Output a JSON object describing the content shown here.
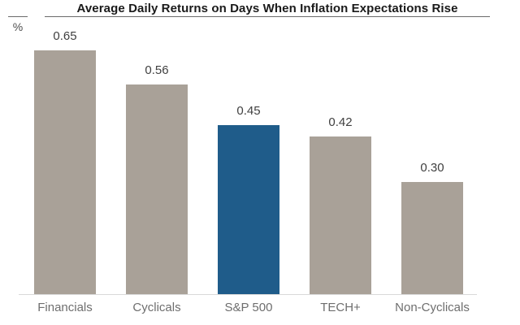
{
  "chart_data": {
    "type": "bar",
    "title": "Average Daily Returns on Days When Inflation Expectations Rise",
    "unit_label": "%",
    "categories": [
      "Financials",
      "Cyclicals",
      "S&P 500",
      "TECH+",
      "Non-Cyclicals"
    ],
    "values": [
      0.65,
      0.56,
      0.45,
      0.42,
      0.3
    ],
    "value_labels": [
      "0.65",
      "0.56",
      "0.45",
      "0.42",
      "0.30"
    ],
    "highlight_index": 2,
    "xlabel": "",
    "ylabel": "%",
    "ylim": [
      0,
      0.72
    ],
    "grid": false,
    "legend": "none",
    "colors": {
      "bar_default": "#a9a198",
      "bar_highlight": "#1f5c8a",
      "title_text": "#1a1a1a",
      "value_text": "#404040",
      "axis_label_text": "#6e6e6e",
      "baseline": "#d9d9d9",
      "rule": "#6b6b6b"
    }
  }
}
